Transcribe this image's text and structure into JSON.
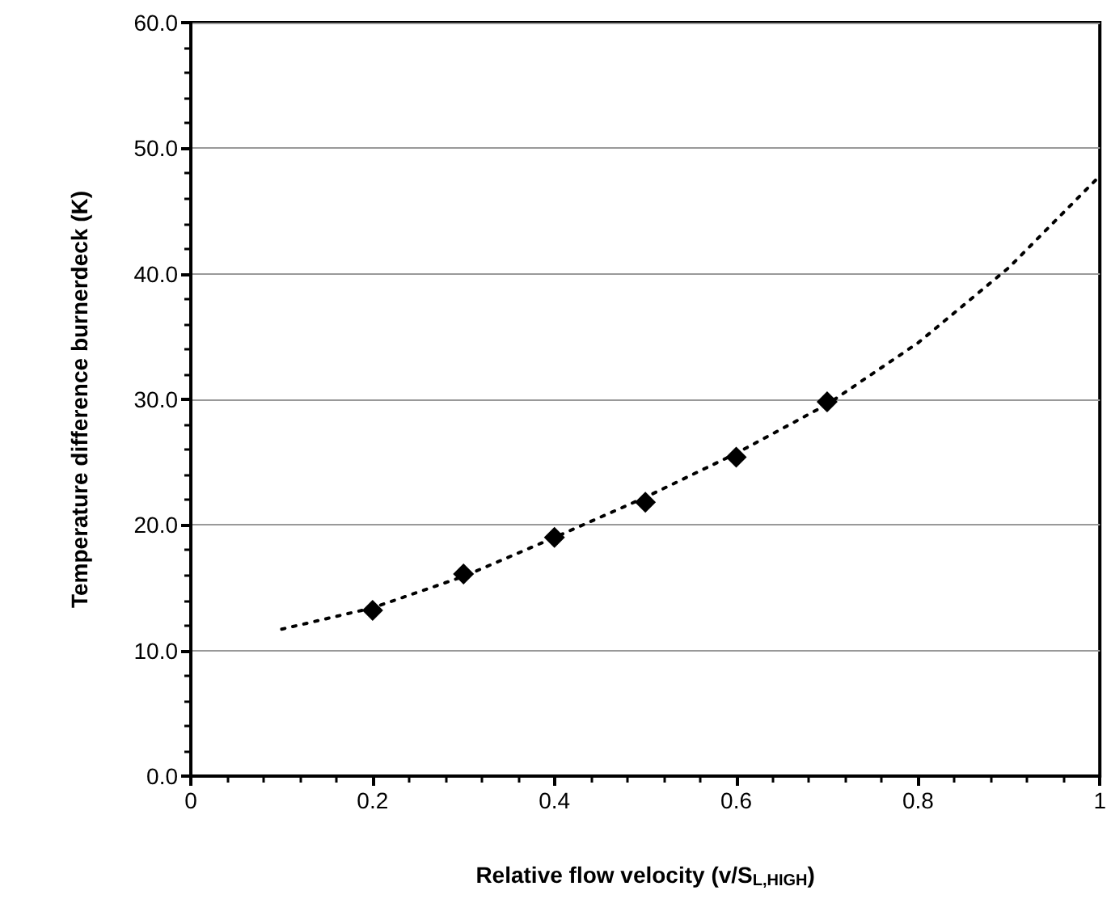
{
  "chart_data": {
    "type": "scatter",
    "xlabel": "Relative flow velocity (v/S$_{L,HIGH}$)",
    "ylabel": "Temperature difference burnerdeck (K)",
    "series": [
      {
        "color": "#000000",
        "marker": "diamond",
        "x": [
          0.2,
          0.3,
          0.4,
          0.5,
          0.6,
          0.7
        ],
        "values": [
          13.2,
          16.1,
          19.0,
          21.8,
          25.4,
          29.8
        ]
      },
      {
        "type": "line",
        "color": "#000000",
        "marker": "none",
        "line_style": "dotted",
        "x": [
          0.1,
          0.2,
          0.3,
          0.4,
          0.5,
          0.6,
          0.7,
          0.8,
          0.9,
          1.0
        ],
        "values": [
          11.7,
          13.4,
          15.9,
          19.0,
          22.2,
          25.7,
          29.6,
          34.5,
          40.5,
          47.8
        ]
      }
    ],
    "xlim": [
      0,
      1
    ],
    "xticks": [
      0,
      0.2,
      0.4,
      0.6,
      0.8,
      1
    ],
    "ylim": [
      0,
      60
    ],
    "yticks": [
      {
        "value": 0,
        "label": "0.0"
      },
      {
        "value": 10,
        "label": "10.0"
      },
      {
        "value": 20,
        "label": "20.0"
      },
      {
        "value": 30,
        "label": "30.0"
      },
      {
        "value": 40,
        "label": "40.0"
      },
      {
        "value": 50,
        "label": "50.0"
      },
      {
        "value": 60,
        "label": "60.0"
      }
    ],
    "grid": "y"
  }
}
